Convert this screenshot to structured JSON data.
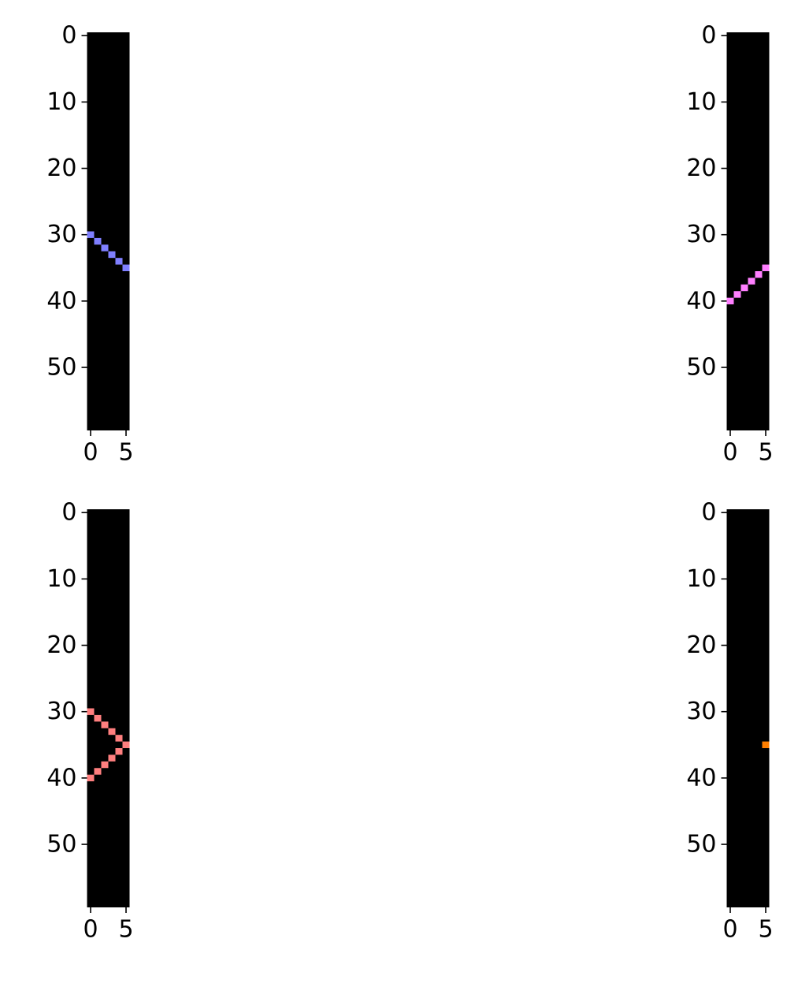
{
  "colors": {
    "background": "#000000",
    "tick": "#000000"
  },
  "chart_data": [
    {
      "type": "heatmap",
      "grid": {
        "rows": 60,
        "cols": 6
      },
      "xticks": [
        0,
        5
      ],
      "yticks": [
        0,
        10,
        20,
        30,
        40,
        50
      ],
      "xlim": [
        -0.5,
        5.5
      ],
      "ylim": [
        59.5,
        -0.5
      ],
      "color": "#7f7fff",
      "pixels": [
        [
          30,
          0
        ],
        [
          31,
          1
        ],
        [
          32,
          2
        ],
        [
          33,
          3
        ],
        [
          34,
          4
        ],
        [
          35,
          5
        ]
      ]
    },
    {
      "type": "heatmap",
      "grid": {
        "rows": 60,
        "cols": 6
      },
      "xticks": [
        0,
        5
      ],
      "yticks": [
        0,
        10,
        20,
        30,
        40,
        50
      ],
      "xlim": [
        -0.5,
        5.5
      ],
      "ylim": [
        59.5,
        -0.5
      ],
      "color": "#ff7fff",
      "pixels": [
        [
          40,
          0
        ],
        [
          39,
          1
        ],
        [
          38,
          2
        ],
        [
          37,
          3
        ],
        [
          36,
          4
        ],
        [
          35,
          5
        ]
      ]
    },
    {
      "type": "heatmap",
      "grid": {
        "rows": 60,
        "cols": 6
      },
      "xticks": [
        0,
        5
      ],
      "yticks": [
        0,
        10,
        20,
        30,
        40,
        50
      ],
      "xlim": [
        -0.5,
        5.5
      ],
      "ylim": [
        59.5,
        -0.5
      ],
      "color": "#ff7f7f",
      "pixels": [
        [
          30,
          0
        ],
        [
          31,
          1
        ],
        [
          32,
          2
        ],
        [
          33,
          3
        ],
        [
          34,
          4
        ],
        [
          35,
          5
        ],
        [
          36,
          4
        ],
        [
          37,
          3
        ],
        [
          38,
          2
        ],
        [
          39,
          1
        ],
        [
          40,
          0
        ]
      ]
    },
    {
      "type": "heatmap",
      "grid": {
        "rows": 60,
        "cols": 6
      },
      "xticks": [
        0,
        5
      ],
      "yticks": [
        0,
        10,
        20,
        30,
        40,
        50
      ],
      "xlim": [
        -0.5,
        5.5
      ],
      "ylim": [
        59.5,
        -0.5
      ],
      "color": "#ff7f00",
      "pixels": [
        [
          35,
          5
        ]
      ]
    }
  ]
}
